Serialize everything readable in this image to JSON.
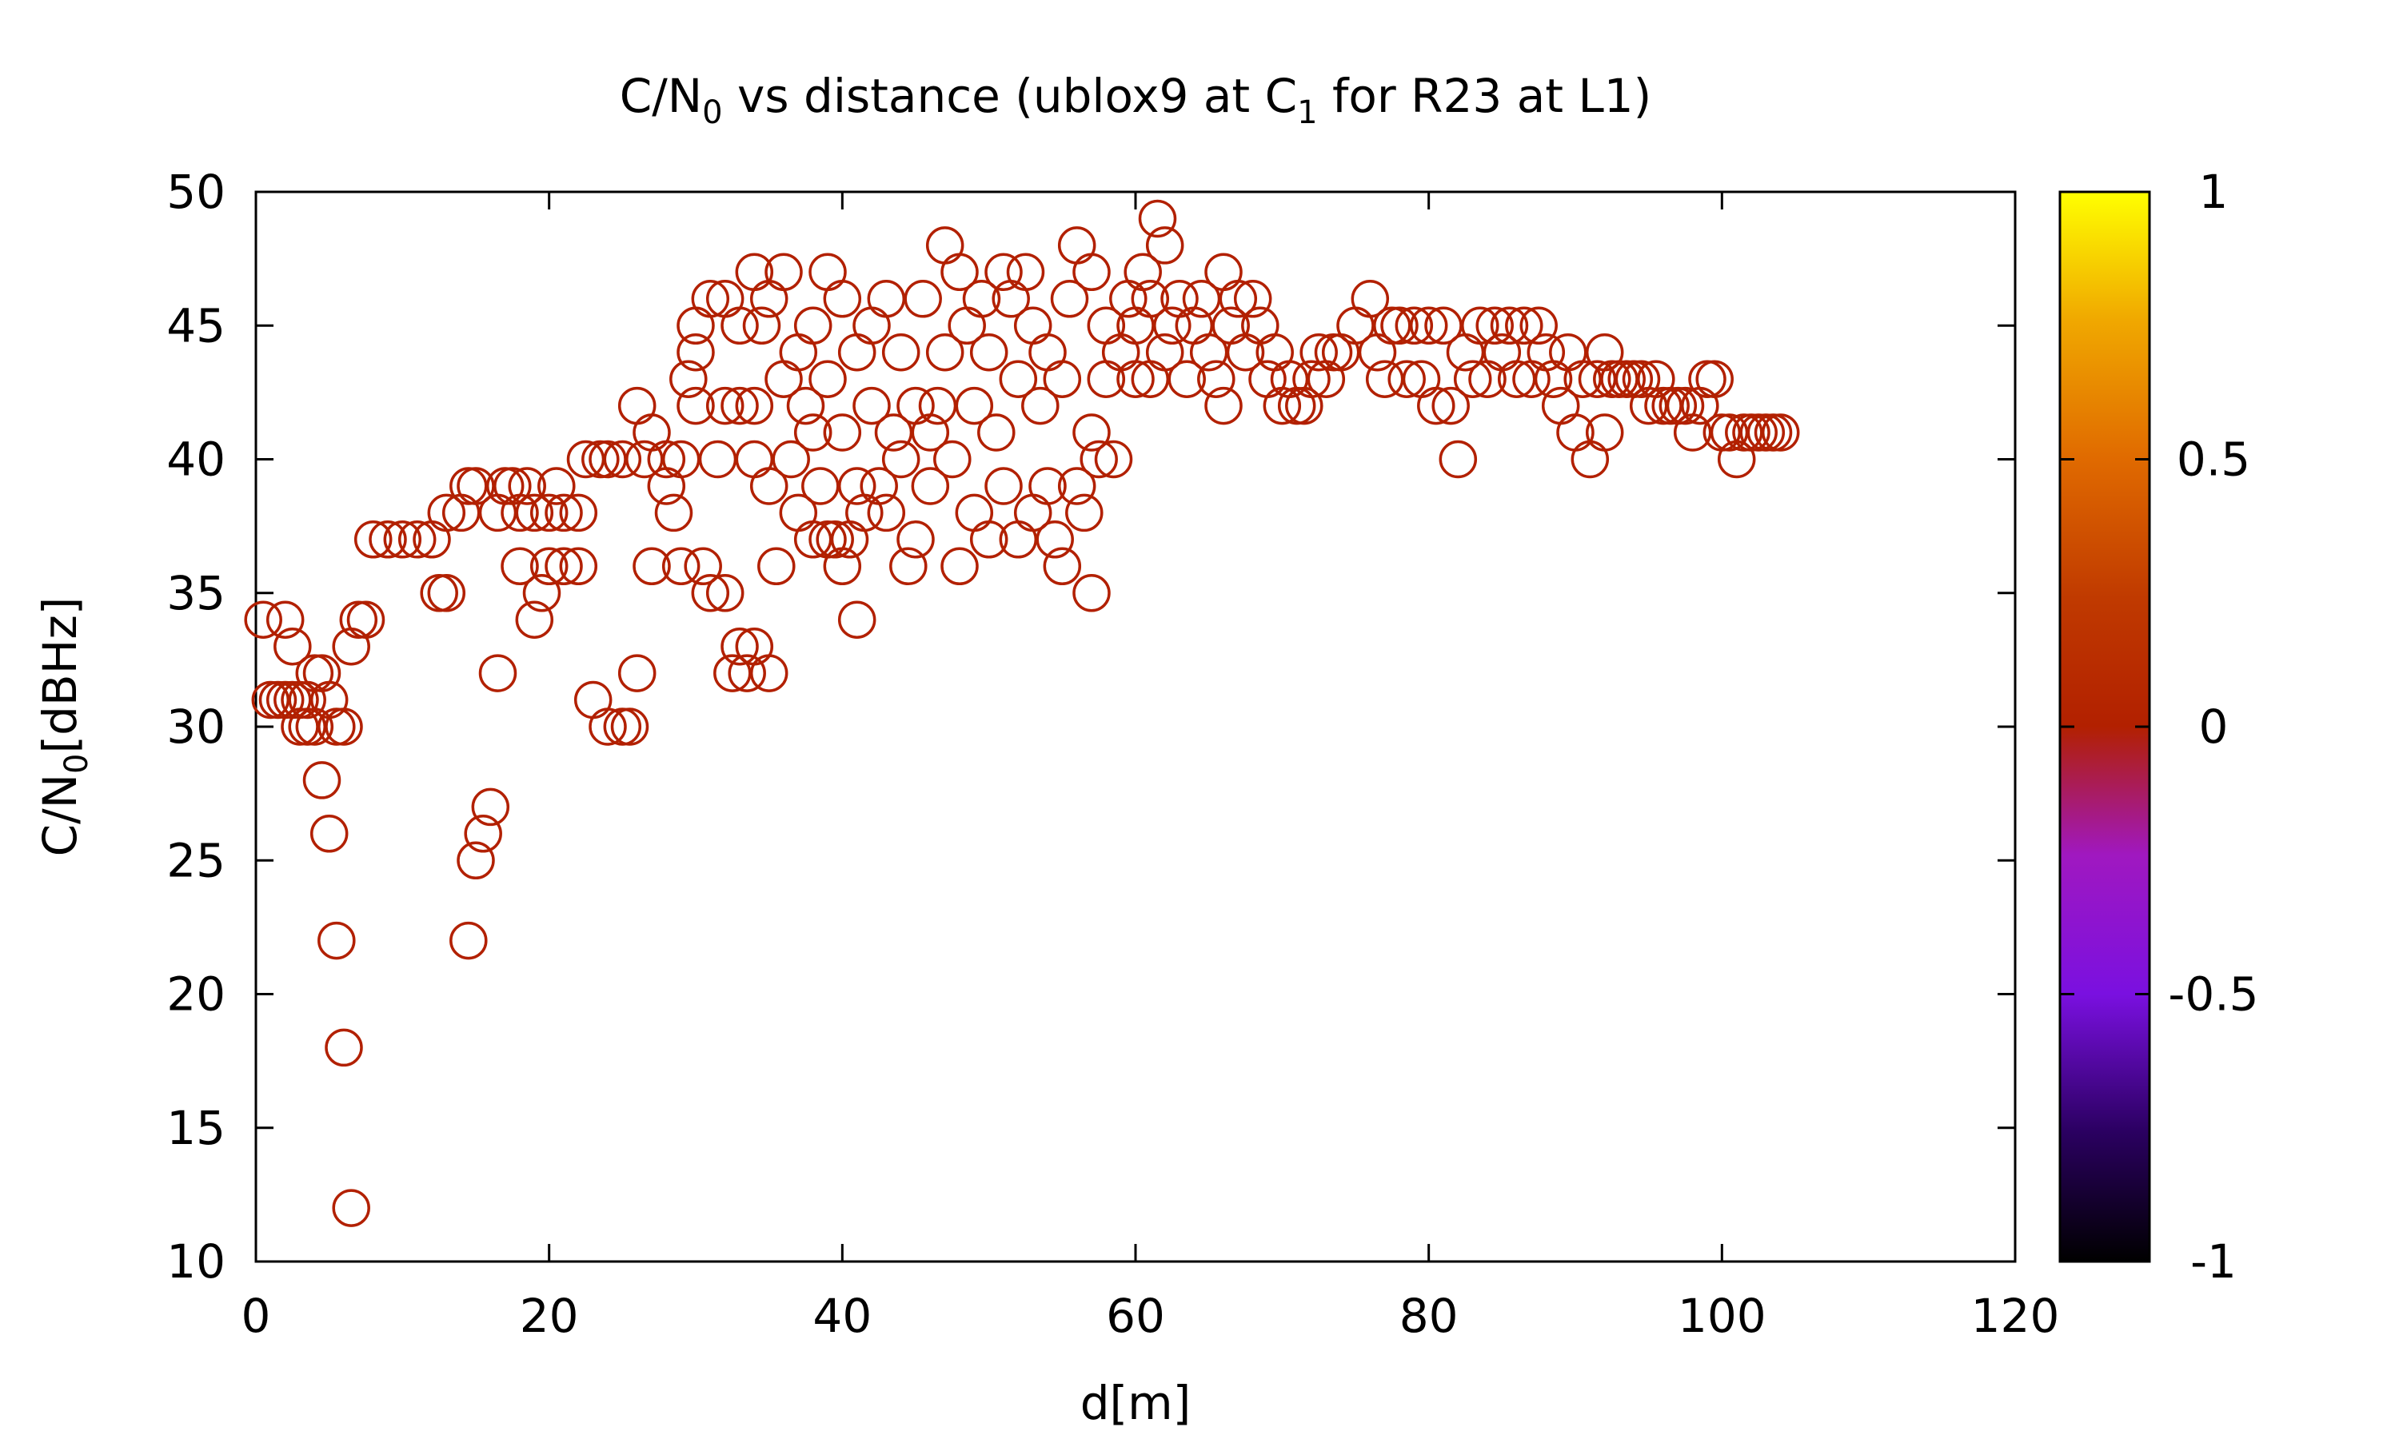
{
  "chart_data": {
    "type": "scatter",
    "title": {
      "part1": "C/N",
      "sub1": "0",
      "part2": " vs distance (ublox9 at C",
      "sub2": "1",
      "part3": " for R23 at L1)"
    },
    "xlabel": "d[m]",
    "ylabel": {
      "part1": "C/N",
      "sub": "0",
      "part2": "[dBHz]"
    },
    "xlim": [
      0,
      120
    ],
    "ylim": [
      10,
      50
    ],
    "xticks": [
      "0",
      "20",
      "40",
      "60",
      "80",
      "100",
      "120"
    ],
    "yticks": [
      "10",
      "15",
      "20",
      "25",
      "30",
      "35",
      "40",
      "45",
      "50"
    ],
    "marker": "open-circle",
    "marker_color": "#b22000",
    "colorbar": {
      "range": [
        -1,
        1
      ],
      "ticks": [
        "-1",
        "-0.5",
        "0",
        "0.5",
        "1"
      ],
      "palette": [
        "#000000",
        "#3a0070",
        "#7a10e0",
        "#a018c0",
        "#b01060",
        "#b22000",
        "#c84000",
        "#e06a00",
        "#f0a000",
        "#ffff00"
      ]
    },
    "series": [
      {
        "points": [
          [
            0.5,
            34
          ],
          [
            1.0,
            31
          ],
          [
            1.5,
            31
          ],
          [
            2.0,
            31
          ],
          [
            2.0,
            34
          ],
          [
            2.5,
            31
          ],
          [
            2.5,
            33
          ],
          [
            3.0,
            30
          ],
          [
            3.0,
            31
          ],
          [
            3.5,
            30
          ],
          [
            3.5,
            31
          ],
          [
            4.0,
            30
          ],
          [
            4.0,
            32
          ],
          [
            4.5,
            28
          ],
          [
            4.5,
            32
          ],
          [
            5.0,
            26
          ],
          [
            5.0,
            31
          ],
          [
            5.5,
            22
          ],
          [
            5.5,
            30
          ],
          [
            6.0,
            18
          ],
          [
            6.0,
            30
          ],
          [
            6.5,
            33
          ],
          [
            6.5,
            12
          ],
          [
            7.0,
            34
          ],
          [
            7.5,
            34
          ],
          [
            8,
            37
          ],
          [
            9,
            37
          ],
          [
            10,
            37
          ],
          [
            11,
            37
          ],
          [
            12,
            37
          ],
          [
            12.5,
            35
          ],
          [
            13,
            35
          ],
          [
            13,
            38
          ],
          [
            14,
            38
          ],
          [
            14.5,
            39
          ],
          [
            14.5,
            22
          ],
          [
            15,
            25
          ],
          [
            15,
            39
          ],
          [
            15.5,
            26
          ],
          [
            16,
            27
          ],
          [
            16.5,
            38
          ],
          [
            16.5,
            32
          ],
          [
            17,
            39
          ],
          [
            17.5,
            39
          ],
          [
            18,
            36
          ],
          [
            18,
            38
          ],
          [
            18.5,
            39
          ],
          [
            19,
            34
          ],
          [
            19,
            38
          ],
          [
            19.5,
            35
          ],
          [
            20,
            36
          ],
          [
            20,
            38
          ],
          [
            20.5,
            39
          ],
          [
            21,
            36
          ],
          [
            21,
            38
          ],
          [
            22,
            36
          ],
          [
            22,
            38
          ],
          [
            22.5,
            40
          ],
          [
            23,
            31
          ],
          [
            23.5,
            40
          ],
          [
            24,
            30
          ],
          [
            24,
            40
          ],
          [
            25,
            30
          ],
          [
            25,
            40
          ],
          [
            25.5,
            30
          ],
          [
            26,
            32
          ],
          [
            26,
            42
          ],
          [
            26.5,
            40
          ],
          [
            27,
            36
          ],
          [
            27,
            41
          ],
          [
            28,
            39
          ],
          [
            28,
            40
          ],
          [
            28.5,
            38
          ],
          [
            29,
            36
          ],
          [
            29,
            40
          ],
          [
            29.5,
            43
          ],
          [
            30,
            44
          ],
          [
            30,
            45
          ],
          [
            30,
            42
          ],
          [
            30.5,
            36
          ],
          [
            31,
            35
          ],
          [
            31,
            46
          ],
          [
            31.5,
            40
          ],
          [
            32,
            35
          ],
          [
            32,
            42
          ],
          [
            32,
            46
          ],
          [
            32.5,
            32
          ],
          [
            33,
            33
          ],
          [
            33,
            42
          ],
          [
            33,
            45
          ],
          [
            33.5,
            32
          ],
          [
            34,
            33
          ],
          [
            34,
            40
          ],
          [
            34,
            42
          ],
          [
            34,
            47
          ],
          [
            34.5,
            45
          ],
          [
            35,
            32
          ],
          [
            35,
            39
          ],
          [
            35,
            46
          ],
          [
            35.5,
            36
          ],
          [
            36,
            43
          ],
          [
            36,
            47
          ],
          [
            36.5,
            40
          ],
          [
            37,
            44
          ],
          [
            37,
            38
          ],
          [
            37.5,
            42
          ],
          [
            38,
            37
          ],
          [
            38,
            45
          ],
          [
            38,
            41
          ],
          [
            38.5,
            39
          ],
          [
            39,
            37
          ],
          [
            39,
            43
          ],
          [
            39,
            47
          ],
          [
            39.5,
            37
          ],
          [
            40,
            36
          ],
          [
            40,
            41
          ],
          [
            40,
            46
          ],
          [
            40.5,
            37
          ],
          [
            41,
            34
          ],
          [
            41,
            39
          ],
          [
            41,
            44
          ],
          [
            41.5,
            38
          ],
          [
            42,
            42
          ],
          [
            42,
            45
          ],
          [
            42.5,
            39
          ],
          [
            43,
            38
          ],
          [
            43,
            46
          ],
          [
            43.5,
            41
          ],
          [
            44,
            40
          ],
          [
            44,
            44
          ],
          [
            44.5,
            36
          ],
          [
            45,
            42
          ],
          [
            45,
            37
          ],
          [
            45.5,
            46
          ],
          [
            46,
            41
          ],
          [
            46,
            39
          ],
          [
            46.5,
            42
          ],
          [
            47,
            48
          ],
          [
            47,
            44
          ],
          [
            47.5,
            40
          ],
          [
            48,
            36
          ],
          [
            48,
            47
          ],
          [
            48.5,
            45
          ],
          [
            49,
            38
          ],
          [
            49,
            42
          ],
          [
            49.5,
            46
          ],
          [
            50,
            37
          ],
          [
            50,
            44
          ],
          [
            50.5,
            41
          ],
          [
            51,
            47
          ],
          [
            51,
            39
          ],
          [
            51.5,
            46
          ],
          [
            52,
            37
          ],
          [
            52,
            43
          ],
          [
            52.5,
            47
          ],
          [
            53,
            38
          ],
          [
            53,
            45
          ],
          [
            53.5,
            42
          ],
          [
            54,
            39
          ],
          [
            54,
            44
          ],
          [
            54.5,
            37
          ],
          [
            55,
            36
          ],
          [
            55,
            43
          ],
          [
            55.5,
            46
          ],
          [
            56,
            48
          ],
          [
            56,
            39
          ],
          [
            56.5,
            38
          ],
          [
            57,
            35
          ],
          [
            57,
            41
          ],
          [
            57,
            47
          ],
          [
            57.5,
            40
          ],
          [
            58,
            43
          ],
          [
            58,
            45
          ],
          [
            58.5,
            40
          ],
          [
            59,
            44
          ],
          [
            59.5,
            46
          ],
          [
            60,
            43
          ],
          [
            60,
            45
          ],
          [
            60.5,
            47
          ],
          [
            61,
            46
          ],
          [
            61,
            43
          ],
          [
            61.5,
            49
          ],
          [
            62,
            48
          ],
          [
            62,
            44
          ],
          [
            62.5,
            45
          ],
          [
            63,
            46
          ],
          [
            63.5,
            43
          ],
          [
            64,
            45
          ],
          [
            64.5,
            46
          ],
          [
            65,
            44
          ],
          [
            65.5,
            43
          ],
          [
            66,
            47
          ],
          [
            66,
            42
          ],
          [
            66.5,
            45
          ],
          [
            67,
            46
          ],
          [
            67.5,
            44
          ],
          [
            68,
            46
          ],
          [
            68.5,
            45
          ],
          [
            69,
            43
          ],
          [
            69.5,
            44
          ],
          [
            70,
            42
          ],
          [
            70.5,
            43
          ],
          [
            71,
            42
          ],
          [
            71.5,
            42
          ],
          [
            72,
            43
          ],
          [
            72.5,
            44
          ],
          [
            73,
            43
          ],
          [
            73.5,
            44
          ],
          [
            74,
            44
          ],
          [
            75,
            45
          ],
          [
            76,
            46
          ],
          [
            76.5,
            44
          ],
          [
            77,
            43
          ],
          [
            77.5,
            45
          ],
          [
            78,
            45
          ],
          [
            78.5,
            43
          ],
          [
            79,
            45
          ],
          [
            79.5,
            43
          ],
          [
            80,
            45
          ],
          [
            80.5,
            42
          ],
          [
            81,
            45
          ],
          [
            81.5,
            42
          ],
          [
            82,
            40
          ],
          [
            82.5,
            44
          ],
          [
            83,
            43
          ],
          [
            83.5,
            45
          ],
          [
            84,
            43
          ],
          [
            84.5,
            45
          ],
          [
            85,
            44
          ],
          [
            85.5,
            45
          ],
          [
            86,
            43
          ],
          [
            86.5,
            45
          ],
          [
            87,
            43
          ],
          [
            87.5,
            45
          ],
          [
            88,
            44
          ],
          [
            88.5,
            43
          ],
          [
            89,
            42
          ],
          [
            89.5,
            44
          ],
          [
            90,
            41
          ],
          [
            90.5,
            43
          ],
          [
            91,
            40
          ],
          [
            91.5,
            43
          ],
          [
            92,
            41
          ],
          [
            92,
            44
          ],
          [
            92.5,
            43
          ],
          [
            93,
            43
          ],
          [
            93.5,
            43
          ],
          [
            94,
            43
          ],
          [
            94.5,
            43
          ],
          [
            95,
            42
          ],
          [
            95.5,
            43
          ],
          [
            96,
            42
          ],
          [
            96.5,
            42
          ],
          [
            97,
            42
          ],
          [
            97.5,
            42
          ],
          [
            98,
            41
          ],
          [
            98.5,
            42
          ],
          [
            99,
            43
          ],
          [
            99.5,
            43
          ],
          [
            100,
            41
          ],
          [
            100.5,
            41
          ],
          [
            101,
            40
          ],
          [
            101.5,
            41
          ],
          [
            102,
            41
          ],
          [
            102.5,
            41
          ],
          [
            103,
            41
          ],
          [
            103.5,
            41
          ],
          [
            104,
            41
          ]
        ]
      }
    ]
  }
}
